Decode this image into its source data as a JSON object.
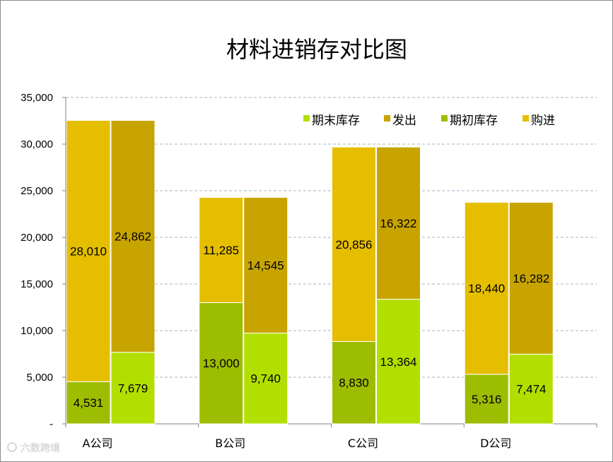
{
  "chart_data": {
    "type": "bar",
    "stacked": true,
    "grouped": true,
    "title": "材料进销存对比图",
    "categories": [
      "A公司",
      "B公司",
      "C公司",
      "D公司"
    ],
    "ylim": [
      0,
      35000
    ],
    "yticks": [
      0,
      5000,
      10000,
      15000,
      20000,
      25000,
      30000,
      35000
    ],
    "ytick_labels": [
      "-",
      "5,000",
      "10,000",
      "15,000",
      "20,000",
      "25,000",
      "30,000",
      "35,000"
    ],
    "gridlines": true,
    "legend_position": "top-right",
    "legend": [
      {
        "name": "期末库存",
        "color": "#b3df00"
      },
      {
        "name": "发出",
        "color": "#c8a400"
      },
      {
        "name": "期初库存",
        "color": "#9dbd00"
      },
      {
        "name": "购进",
        "color": "#e6be00"
      }
    ],
    "series": [
      {
        "name": "期初库存",
        "stack": "left",
        "color": "#9dbd00",
        "values": [
          4531,
          13000,
          8830,
          5316
        ],
        "labels": [
          "4,531",
          "13,000",
          "8,830",
          "5,316"
        ]
      },
      {
        "name": "购进",
        "stack": "left",
        "color": "#e6be00",
        "values": [
          28010,
          11285,
          20856,
          18440
        ],
        "labels": [
          "28,010",
          "11,285",
          "20,856",
          "18,440"
        ]
      },
      {
        "name": "期末库存",
        "stack": "right",
        "color": "#b3df00",
        "values": [
          7679,
          9740,
          13364,
          7474
        ],
        "labels": [
          "7,679",
          "9,740",
          "13,364",
          "7,474"
        ]
      },
      {
        "name": "发出",
        "stack": "right",
        "color": "#c8a400",
        "values": [
          24862,
          14545,
          16322,
          16282
        ],
        "labels": [
          "24,862",
          "14,545",
          "16,322",
          "16,282"
        ]
      }
    ],
    "watermark": "六数跨境"
  }
}
